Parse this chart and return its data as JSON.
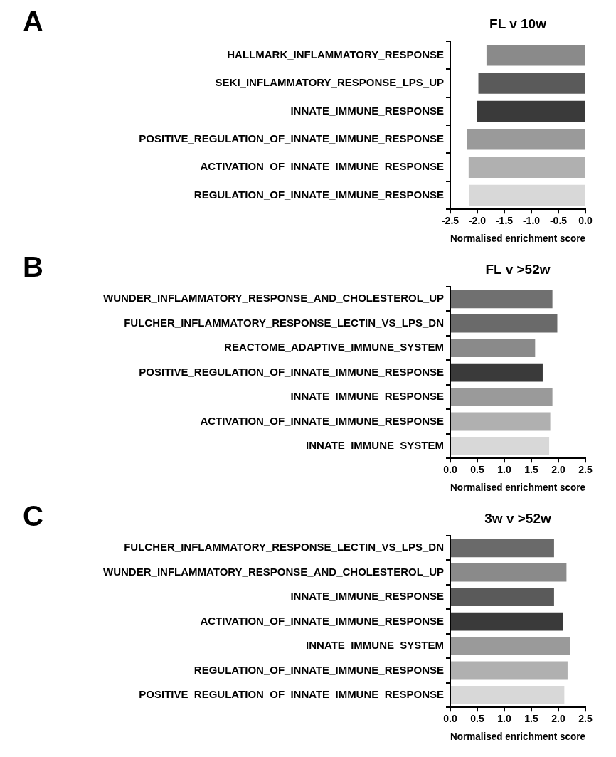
{
  "chart_data": [
    {
      "type": "bar",
      "orientation": "horizontal",
      "title": "FL v 10w",
      "xlabel": "Normalised enrichment score",
      "annotations": [
        "A"
      ],
      "categories": [
        "HALLMARK_INFLAMMATORY_RESPONSE",
        "SEKI_INFLAMMATORY_RESPONSE_LPS_UP",
        "INNATE_IMMUNE_RESPONSE",
        "POSITIVE_REGULATION_OF_INNATE_IMMUNE_RESPONSE",
        "ACTIVATION_OF_INNATE_IMMUNE_RESPONSE",
        "REGULATION_OF_INNATE_IMMUNE_RESPONSE"
      ],
      "values": [
        -1.83,
        -1.98,
        -2.01,
        -2.19,
        -2.16,
        -2.15
      ],
      "colors": [
        "#8a8a8a",
        "#5a5a5a",
        "#3a3a3a",
        "#9a9a9a",
        "#b0b0b0",
        "#d8d8d8"
      ],
      "xlim": [
        -2.5,
        0
      ],
      "xticks": [
        {
          "value": -2.5,
          "label": "-2.5"
        },
        {
          "value": -2,
          "label": "-2.0"
        },
        {
          "value": -1.5,
          "label": "-1.5"
        },
        {
          "value": -1,
          "label": "-1.0"
        },
        {
          "value": -0.5,
          "label": "-0.5"
        },
        {
          "value": 0,
          "label": "0.0"
        }
      ]
    },
    {
      "type": "bar",
      "orientation": "horizontal",
      "title": "FL v >52w",
      "xlabel": "Normalised enrichment score",
      "annotations": [
        "B"
      ],
      "categories": [
        "WUNDER_INFLAMMATORY_RESPONSE_AND_CHOLESTEROL_UP",
        "FULCHER_INFLAMMATORY_RESPONSE_LECTIN_VS_LPS_DN",
        "REACTOME_ADAPTIVE_IMMUNE_SYSTEM",
        "POSITIVE_REGULATION_OF_INNATE_IMMUNE_RESPONSE",
        "INNATE_IMMUNE_RESPONSE",
        "ACTIVATION_OF_INNATE_IMMUNE_RESPONSE",
        "INNATE_IMMUNE_SYSTEM"
      ],
      "values": [
        1.89,
        1.98,
        1.57,
        1.71,
        1.89,
        1.85,
        1.83
      ],
      "colors": [
        "#707070",
        "#6a6a6a",
        "#8a8a8a",
        "#3a3a3a",
        "#9a9a9a",
        "#b0b0b0",
        "#d8d8d8"
      ],
      "xlim": [
        0,
        2.5
      ],
      "xticks": [
        {
          "value": 0,
          "label": "0.0"
        },
        {
          "value": 0.5,
          "label": "0.5"
        },
        {
          "value": 1,
          "label": "1.0"
        },
        {
          "value": 1.5,
          "label": "1.5"
        },
        {
          "value": 2,
          "label": "2.0"
        },
        {
          "value": 2.5,
          "label": "2.5"
        }
      ]
    },
    {
      "type": "bar",
      "orientation": "horizontal",
      "title": "3w v >52w",
      "xlabel": "Normalised enrichment score",
      "annotations": [
        "C"
      ],
      "categories": [
        "FULCHER_INFLAMMATORY_RESPONSE_LECTIN_VS_LPS_DN",
        "WUNDER_INFLAMMATORY_RESPONSE_AND_CHOLESTEROL_UP",
        "INNATE_IMMUNE_RESPONSE",
        "ACTIVATION_OF_INNATE_IMMUNE_RESPONSE",
        "INNATE_IMMUNE_SYSTEM",
        "REGULATION_OF_INNATE_IMMUNE_RESPONSE",
        "POSITIVE_REGULATION_OF_INNATE_IMMUNE_RESPONSE"
      ],
      "values": [
        1.92,
        2.15,
        1.92,
        2.09,
        2.22,
        2.17,
        2.11
      ],
      "colors": [
        "#6a6a6a",
        "#8a8a8a",
        "#5a5a5a",
        "#3a3a3a",
        "#9a9a9a",
        "#b0b0b0",
        "#d8d8d8"
      ],
      "xlim": [
        0,
        2.5
      ],
      "xticks": [
        {
          "value": 0,
          "label": "0.0"
        },
        {
          "value": 0.5,
          "label": "0.5"
        },
        {
          "value": 1,
          "label": "1.0"
        },
        {
          "value": 1.5,
          "label": "1.5"
        },
        {
          "value": 2,
          "label": "2.0"
        },
        {
          "value": 2.5,
          "label": "2.5"
        }
      ]
    }
  ]
}
